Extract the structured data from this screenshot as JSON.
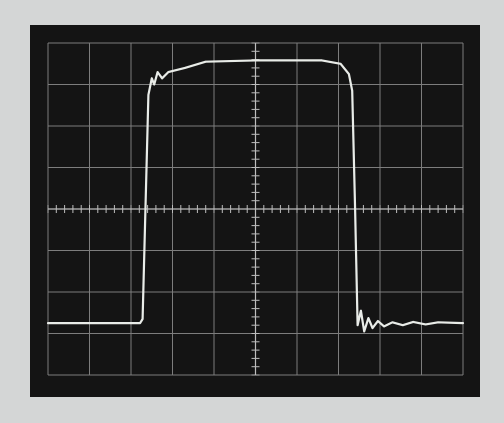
{
  "scope": {
    "grid_divisions": {
      "horizontal": 10,
      "vertical": 8
    },
    "minor_ticks_per_division": 5,
    "trace": {
      "type": "square-pulse",
      "low_level_div": -2.75,
      "high_level_div": 3.25,
      "rise_time_div": 5.05,
      "fall_time_div": 4.82,
      "overshoot_at_rise_div": 0.25,
      "ringing_after_fall": true,
      "trace_color": "#e9ece8"
    },
    "colors": {
      "background": "#d4d6d6",
      "bezel": "#0d0d0d",
      "screen": "#141414",
      "graticule": "#7d7d7d",
      "graticule_center": "#bdbdbd"
    }
  }
}
